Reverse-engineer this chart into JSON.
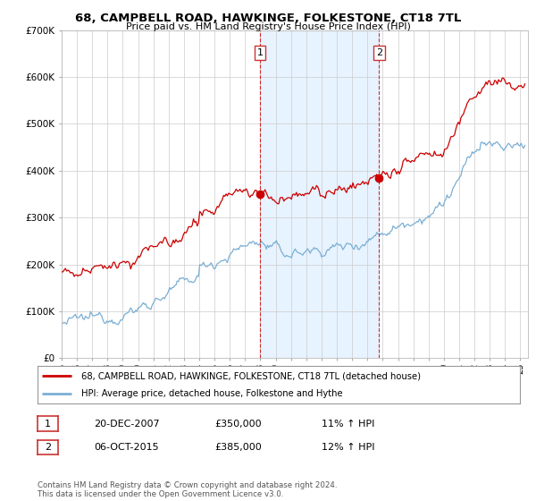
{
  "title": "68, CAMPBELL ROAD, HAWKINGE, FOLKESTONE, CT18 7TL",
  "subtitle": "Price paid vs. HM Land Registry's House Price Index (HPI)",
  "legend_line1": "68, CAMPBELL ROAD, HAWKINGE, FOLKESTONE, CT18 7TL (detached house)",
  "legend_line2": "HPI: Average price, detached house, Folkestone and Hythe",
  "sale1_date": "20-DEC-2007",
  "sale1_price": "£350,000",
  "sale1_hpi": "11% ↑ HPI",
  "sale1_year": 2007.97,
  "sale1_value": 350000,
  "sale2_date": "06-OCT-2015",
  "sale2_price": "£385,000",
  "sale2_hpi": "12% ↑ HPI",
  "sale2_year": 2015.77,
  "sale2_value": 385000,
  "footer": "Contains HM Land Registry data © Crown copyright and database right 2024.\nThis data is licensed under the Open Government Licence v3.0.",
  "hpi_color": "#7bafd4",
  "price_color": "#cc0000",
  "vline_color": "#cc0000",
  "shade_color": "#ddeeff",
  "grid_color": "#cccccc",
  "background_color": "#ffffff",
  "ylim": [
    0,
    700000
  ],
  "xlim_start": 1995,
  "xlim_end": 2025.5
}
